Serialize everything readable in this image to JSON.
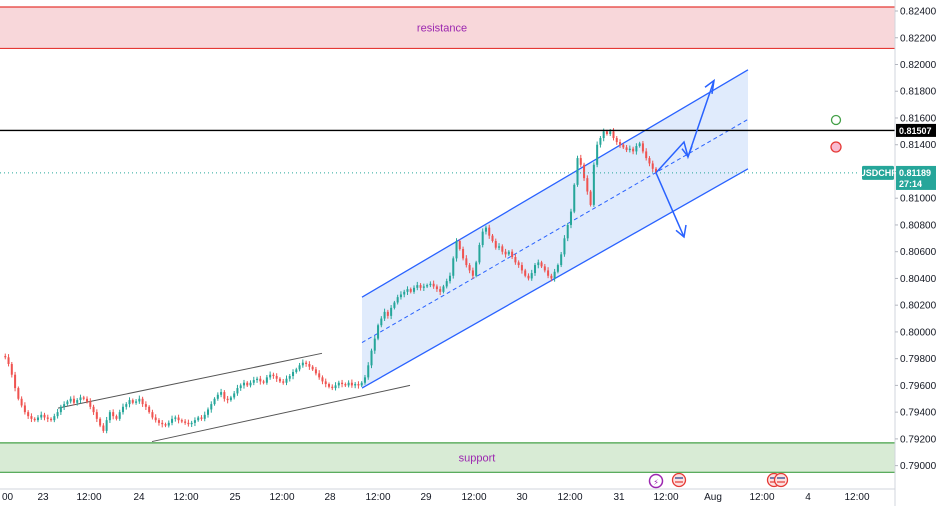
{
  "chart_data": {
    "type": "candlestick",
    "symbol": "USDCHF",
    "last_price": "0.81189",
    "countdown": "27:14",
    "marked_level": "0.81507",
    "y_range": [
      0.789,
      0.8243
    ],
    "y_ticks": [
      "0.82400",
      "0.82200",
      "0.82000",
      "0.81800",
      "0.81600",
      "0.81400",
      "0.81200",
      "0.81000",
      "0.80800",
      "0.80600",
      "0.80400",
      "0.80200",
      "0.80000",
      "0.79800",
      "0.79600",
      "0.79400",
      "0.79200",
      "0.79000"
    ],
    "x_ticks": [
      "00",
      "23",
      "12:00",
      "24",
      "12:00",
      "25",
      "12:00",
      "28",
      "12:00",
      "29",
      "12:00",
      "30",
      "12:00",
      "31",
      "12:00",
      "Aug",
      "12:00",
      "4",
      "12:00"
    ],
    "zones": [
      {
        "label": "resistance",
        "from": 0.8212,
        "to": 0.8243
      },
      {
        "label": "support",
        "from": 0.7895,
        "to": 0.7917
      }
    ],
    "close_path": [
      0.7982,
      0.7981,
      0.7976,
      0.7968,
      0.7958,
      0.795,
      0.7945,
      0.794,
      0.7937,
      0.7935,
      0.7934,
      0.7936,
      0.7938,
      0.7936,
      0.7935,
      0.7934,
      0.7937,
      0.794,
      0.7944,
      0.7946,
      0.7948,
      0.795,
      0.7947,
      0.7949,
      0.7951,
      0.795,
      0.7948,
      0.7944,
      0.794,
      0.7935,
      0.793,
      0.7926,
      0.7934,
      0.794,
      0.7937,
      0.7935,
      0.794,
      0.7944,
      0.7946,
      0.7949,
      0.7947,
      0.7948,
      0.795,
      0.7946,
      0.7944,
      0.794,
      0.7936,
      0.7934,
      0.7932,
      0.7931,
      0.793,
      0.7932,
      0.7935,
      0.7936,
      0.7934,
      0.7933,
      0.7932,
      0.7931,
      0.7932,
      0.7934,
      0.7936,
      0.7935,
      0.7938,
      0.7942,
      0.7946,
      0.795,
      0.7953,
      0.7955,
      0.795,
      0.7949,
      0.7951,
      0.7954,
      0.7958,
      0.796,
      0.7962,
      0.796,
      0.7962,
      0.7964,
      0.7965,
      0.7963,
      0.7962,
      0.7966,
      0.7968,
      0.7967,
      0.7965,
      0.7963,
      0.7962,
      0.7965,
      0.7967,
      0.797,
      0.7972,
      0.7975,
      0.7977,
      0.7976,
      0.7974,
      0.7972,
      0.7969,
      0.7966,
      0.7963,
      0.7961,
      0.7959,
      0.7958,
      0.796,
      0.7962,
      0.7961,
      0.796,
      0.7962,
      0.796,
      0.7961,
      0.796,
      0.7962,
      0.7966,
      0.7975,
      0.7986,
      0.7995,
      0.8005,
      0.801,
      0.8015,
      0.8012,
      0.8018,
      0.8022,
      0.8026,
      0.8028,
      0.803,
      0.8032,
      0.803,
      0.8033,
      0.8035,
      0.8033,
      0.8034,
      0.8035,
      0.8036,
      0.8034,
      0.8032,
      0.803,
      0.8034,
      0.8038,
      0.8042,
      0.8055,
      0.8068,
      0.8062,
      0.8055,
      0.805,
      0.8046,
      0.8042,
      0.8052,
      0.8065,
      0.8075,
      0.8078,
      0.8072,
      0.8068,
      0.8063,
      0.8064,
      0.806,
      0.8058,
      0.806,
      0.8056,
      0.8052,
      0.805,
      0.8046,
      0.8042,
      0.804,
      0.8044,
      0.805,
      0.8052,
      0.8049,
      0.8046,
      0.8042,
      0.804,
      0.8045,
      0.805,
      0.8058,
      0.807,
      0.808,
      0.809,
      0.811,
      0.813,
      0.8125,
      0.8115,
      0.8105,
      0.8095,
      0.8125,
      0.814,
      0.8145,
      0.815,
      0.8148,
      0.815,
      0.8145,
      0.8142,
      0.814,
      0.8138,
      0.8136,
      0.8137,
      0.8135,
      0.8139,
      0.8141,
      0.8135,
      0.813,
      0.8126,
      0.8122,
      0.8119
    ]
  },
  "colors": {
    "up": "#26a69a",
    "down": "#ef5350",
    "channel": "#2962ff",
    "channel_fill": "#dbe8fb",
    "resistance_fill": "#f8d7da",
    "resistance_line": "#e53935",
    "support_fill": "#d8ebd5",
    "support_line": "#43a047",
    "level_line": "#000000",
    "wedge_line": "#555555"
  }
}
